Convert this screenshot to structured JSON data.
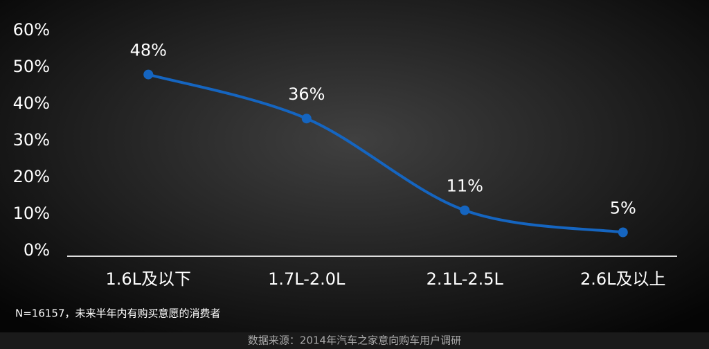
{
  "chart_data": {
    "type": "line",
    "categories": [
      "1.6L及以下",
      "1.7L-2.0L",
      "2.1L-2.5L",
      "2.6L及以上"
    ],
    "values": [
      48,
      36,
      11,
      5
    ],
    "value_labels": [
      "48%",
      "36%",
      "11%",
      "5%"
    ],
    "color": "#1565c0",
    "ylim": [
      0,
      60
    ],
    "yticks": [
      {
        "value": 0,
        "label": "0%"
      },
      {
        "value": 10,
        "label": "10%"
      },
      {
        "value": 20,
        "label": "20%"
      },
      {
        "value": 30,
        "label": "30%"
      },
      {
        "value": 40,
        "label": "40%"
      },
      {
        "value": 50,
        "label": "50%"
      },
      {
        "value": 60,
        "label": "60%"
      }
    ],
    "grid": false,
    "note": "N=16157，未来半年内有购买意愿的消费者",
    "source": "数据来源：2014年汽车之家意向购车用户调研"
  }
}
